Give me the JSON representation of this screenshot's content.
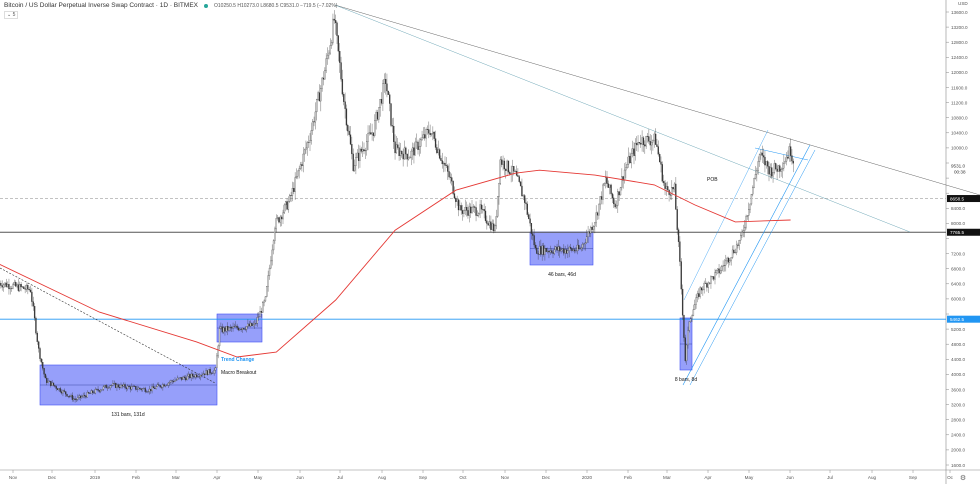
{
  "header": {
    "title": "Bitcoin / US Dollar Perpetual Inverse Swap Contract · 1D · BITMEX",
    "ohlc": "O10250.5 H10273.0 L8680.5 C9531.0 −719.5 (−7.02%)",
    "collapse": "⌄ 5"
  },
  "chart_data": {
    "type": "candlestick",
    "title": "",
    "yaxis": {
      "unit": "USD",
      "range": [
        1400,
        13900
      ],
      "ticks": [
        1600,
        2000,
        2400,
        2800,
        3200,
        3600,
        4000,
        4400,
        4800,
        5200,
        5600,
        6000,
        6400,
        6800,
        7200,
        7600,
        8000,
        8400,
        8800,
        9200,
        9600,
        10000,
        10400,
        10800,
        11200,
        11600,
        12000,
        12400,
        12800,
        13200,
        13600
      ]
    },
    "xaxis": {
      "ticks": [
        "Nov",
        "Dec",
        "2019",
        "Feb",
        "Mar",
        "Apr",
        "May",
        "Jun",
        "Jul",
        "Aug",
        "Sep",
        "Oct",
        "Nov",
        "Dec",
        "2020",
        "Feb",
        "Mar",
        "Apr",
        "May",
        "Jun",
        "Jul",
        "Aug",
        "Sep",
        "Oc"
      ]
    },
    "price_path": [
      [
        "2018-10-22",
        6420
      ],
      [
        "2018-11-14",
        6240
      ],
      [
        "2018-11-20",
        4650
      ],
      [
        "2018-11-25",
        3850
      ],
      [
        "2018-12-17",
        3330
      ],
      [
        "2019-01-12",
        3720
      ],
      [
        "2019-02-10",
        3590
      ],
      [
        "2019-03-01",
        3850
      ],
      [
        "2019-03-31",
        4110
      ],
      [
        "2019-04-03",
        5170
      ],
      [
        "2019-04-29",
        5300
      ],
      [
        "2019-05-07",
        5970
      ],
      [
        "2019-05-14",
        7960
      ],
      [
        "2019-05-25",
        8620
      ],
      [
        "2019-06-09",
        10340
      ],
      [
        "2019-06-20",
        12060
      ],
      [
        "2019-06-27",
        13390
      ],
      [
        "2019-07-04",
        11280
      ],
      [
        "2019-07-11",
        9550
      ],
      [
        "2019-07-26",
        10480
      ],
      [
        "2019-08-04",
        11800
      ],
      [
        "2019-08-11",
        9950
      ],
      [
        "2019-08-22",
        9810
      ],
      [
        "2019-09-06",
        10480
      ],
      [
        "2019-09-21",
        9150
      ],
      [
        "2019-09-28",
        8350
      ],
      [
        "2019-10-13",
        8350
      ],
      [
        "2019-10-24",
        7820
      ],
      [
        "2019-10-28",
        9680
      ],
      [
        "2019-11-08",
        9280
      ],
      [
        "2019-11-15",
        8620
      ],
      [
        "2019-11-23",
        7300
      ],
      [
        "2019-12-11",
        7300
      ],
      [
        "2019-12-26",
        7300
      ],
      [
        "2020-01-06",
        8090
      ],
      [
        "2020-01-14",
        9150
      ],
      [
        "2020-01-21",
        8490
      ],
      [
        "2020-01-28",
        9420
      ],
      [
        "2020-02-08",
        10210
      ],
      [
        "2020-02-20",
        10210
      ],
      [
        "2020-02-27",
        8890
      ],
      [
        "2020-03-05",
        8890
      ],
      [
        "2020-03-09",
        6900
      ],
      [
        "2020-03-13",
        4380
      ],
      [
        "2020-03-16",
        5440
      ],
      [
        "2020-03-24",
        6240
      ],
      [
        "2020-04-08",
        6770
      ],
      [
        "2020-04-23",
        7560
      ],
      [
        "2020-04-30",
        8620
      ],
      [
        "2020-05-07",
        9810
      ],
      [
        "2020-05-15",
        9400
      ],
      [
        "2020-05-22",
        9500
      ],
      [
        "2020-05-30",
        9950
      ],
      [
        "2020-06-02",
        9531
      ]
    ],
    "moving_average": [
      [
        "2018-10-22",
        6920
      ],
      [
        "2019-01-04",
        5650
      ],
      [
        "2019-03-17",
        4860
      ],
      [
        "2019-04-16",
        4460
      ],
      [
        "2019-05-15",
        4590
      ],
      [
        "2019-06-28",
        5970
      ],
      [
        "2019-08-11",
        7820
      ],
      [
        "2019-09-25",
        8880
      ],
      [
        "2019-11-08",
        9330
      ],
      [
        "2019-11-26",
        9410
      ],
      [
        "2020-01-06",
        9280
      ],
      [
        "2020-02-19",
        9020
      ],
      [
        "2020-03-20",
        8490
      ],
      [
        "2020-04-19",
        8040
      ],
      [
        "2020-05-30",
        8090
      ]
    ],
    "horizontal_levels": [
      {
        "value": 8658.5,
        "label": "8658.5",
        "color": "#9e9e9e",
        "style": "dashed"
      },
      {
        "value": 7765.5,
        "label": "7765.5",
        "color": "#555555",
        "style": "solid"
      },
      {
        "value": 5462.5,
        "label": "5462.5",
        "color": "#2196f3",
        "style": "solid"
      }
    ],
    "last_price": {
      "label": "9531.0",
      "countdown": "00:38"
    },
    "annotations": [
      {
        "text": "131 bars, 131d"
      },
      {
        "text": "Trend Change",
        "color": "#2196f3"
      },
      {
        "text": "Macro Breakout"
      },
      {
        "text": "46 bars, 46d"
      },
      {
        "text": "POB"
      },
      {
        "text": "8 bars, 8d"
      }
    ],
    "colors": {
      "up": "#ffffff",
      "down": "#333333",
      "ma": "#e53935",
      "range_box": "#3f51f5"
    }
  }
}
